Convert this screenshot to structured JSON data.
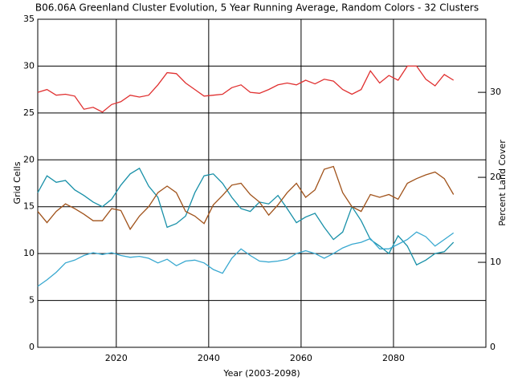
{
  "chart_data": {
    "type": "line",
    "title": "B06.06A Greenland Cluster Evolution, 5 Year Running Average, Random Colors - 32 Clusters",
    "xlabel": "Year (2003-2098)",
    "ylabel": "Grid Cells",
    "y2label": "Percent Land Cover",
    "x": [
      2003,
      2005,
      2007,
      2009,
      2011,
      2013,
      2015,
      2017,
      2019,
      2021,
      2023,
      2025,
      2027,
      2029,
      2031,
      2033,
      2035,
      2037,
      2039,
      2041,
      2043,
      2045,
      2047,
      2049,
      2051,
      2053,
      2055,
      2057,
      2059,
      2061,
      2063,
      2065,
      2067,
      2069,
      2071,
      2073,
      2075,
      2077,
      2079,
      2081,
      2083,
      2085,
      2087,
      2089,
      2091,
      2093
    ],
    "series": [
      {
        "color": "#e03030",
        "values": [
          27.2,
          27.5,
          26.9,
          27.0,
          26.8,
          25.4,
          25.6,
          25.1,
          25.9,
          26.2,
          26.9,
          26.7,
          26.9,
          28.0,
          29.3,
          29.2,
          28.2,
          27.5,
          26.8,
          26.9,
          27.0,
          27.7,
          28.0,
          27.2,
          27.1,
          27.5,
          28.0,
          28.2,
          28.0,
          28.5,
          28.1,
          28.6,
          28.4,
          27.5,
          27.0,
          27.5,
          29.5,
          28.2,
          29.0,
          28.5,
          30.0,
          30.0,
          28.6,
          27.9,
          29.1,
          28.5
        ]
      },
      {
        "color": "#1890a8",
        "values": [
          16.5,
          18.3,
          17.6,
          17.8,
          16.8,
          16.2,
          15.5,
          15.0,
          15.8,
          17.3,
          18.5,
          19.1,
          17.2,
          16.0,
          12.8,
          13.2,
          14.0,
          16.5,
          18.3,
          18.5,
          17.5,
          16.0,
          14.8,
          14.5,
          15.5,
          15.3,
          16.2,
          14.8,
          13.3,
          13.9,
          14.3,
          12.8,
          11.5,
          12.3,
          15.0,
          13.5,
          11.5,
          10.8,
          10.0,
          11.9,
          10.8,
          8.8,
          9.3,
          10.0,
          10.2,
          11.2
        ]
      },
      {
        "color": "#a0521a",
        "values": [
          14.5,
          13.3,
          14.5,
          15.3,
          14.8,
          14.2,
          13.5,
          13.5,
          14.8,
          14.6,
          12.6,
          14.0,
          15.0,
          16.5,
          17.2,
          16.5,
          14.5,
          14.0,
          13.2,
          15.2,
          16.2,
          17.3,
          17.5,
          16.3,
          15.5,
          14.1,
          15.2,
          16.5,
          17.5,
          16.0,
          16.8,
          19.0,
          19.3,
          16.5,
          15.0,
          14.5,
          16.3,
          16.0,
          16.3,
          15.8,
          17.5,
          18.0,
          18.4,
          18.7,
          18.0,
          16.3
        ]
      },
      {
        "color": "#38a8d0",
        "values": [
          6.5,
          7.2,
          8.0,
          9.0,
          9.3,
          9.8,
          10.1,
          9.9,
          10.1,
          9.8,
          9.6,
          9.7,
          9.5,
          9.0,
          9.4,
          8.7,
          9.2,
          9.3,
          9.0,
          8.3,
          7.9,
          9.5,
          10.5,
          9.8,
          9.2,
          9.1,
          9.2,
          9.4,
          10.0,
          10.3,
          10.0,
          9.5,
          10.0,
          10.6,
          11.0,
          11.2,
          11.6,
          10.5,
          10.5,
          11.0,
          11.5,
          12.3,
          11.8,
          10.8,
          11.5,
          12.2
        ]
      }
    ],
    "xlim": [
      2003,
      2100
    ],
    "xticks": [
      2020,
      2040,
      2060,
      2080
    ],
    "ylim": [
      0,
      35
    ],
    "yticks": [
      0,
      5,
      10,
      15,
      20,
      25,
      30,
      35
    ],
    "y2lim": [
      0,
      38.6
    ],
    "y2ticks": [
      0,
      10,
      20,
      30
    ],
    "grid": true
  }
}
